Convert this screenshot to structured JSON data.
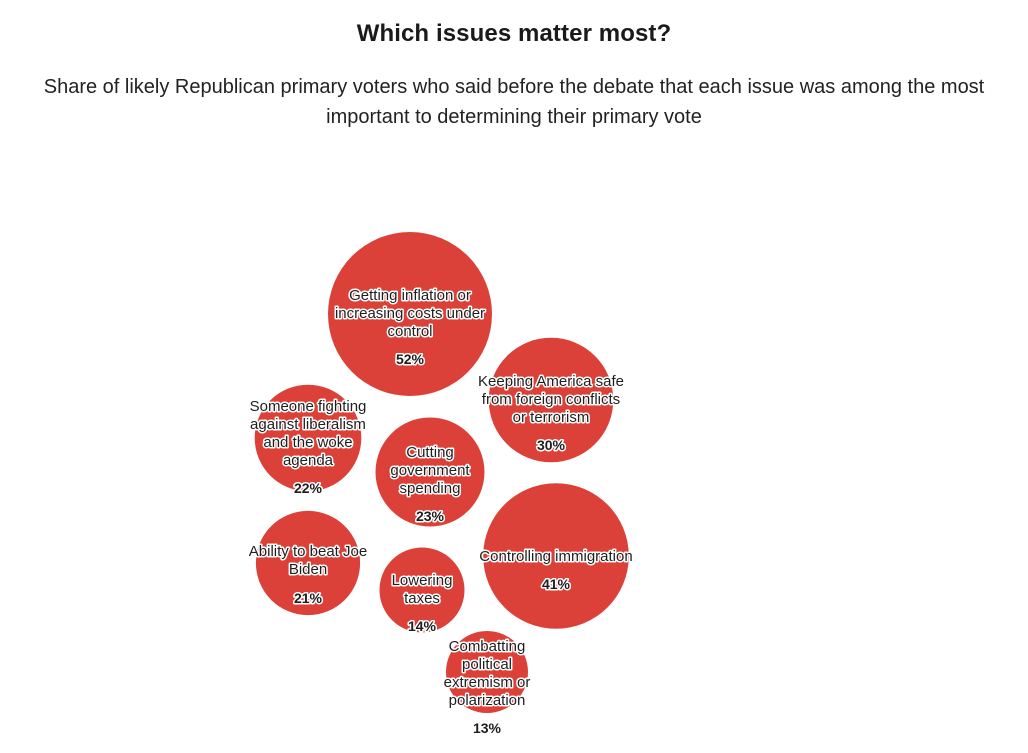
{
  "chart_data": {
    "type": "bubble",
    "title": "Which issues matter most?",
    "subtitle": "Share of likely Republican primary voters who said before the debate that each issue was among the most important to determining their primary vote",
    "bubble_color": "#db4138",
    "value_suffix": "%",
    "items": [
      {
        "label": "Getting inflation or increasing costs under control",
        "value": 52
      },
      {
        "label": "Controlling immigration",
        "value": 41
      },
      {
        "label": "Keeping America safe from foreign conflicts or terrorism",
        "value": 30
      },
      {
        "label": "Cutting government spending",
        "value": 23
      },
      {
        "label": "Someone fighting against liberalism and the woke agenda",
        "value": 22
      },
      {
        "label": "Ability to beat Joe Biden",
        "value": 21
      },
      {
        "label": "Lowering taxes",
        "value": 14
      },
      {
        "label": "Combatting political extremism or polarization",
        "value": 13
      }
    ]
  }
}
